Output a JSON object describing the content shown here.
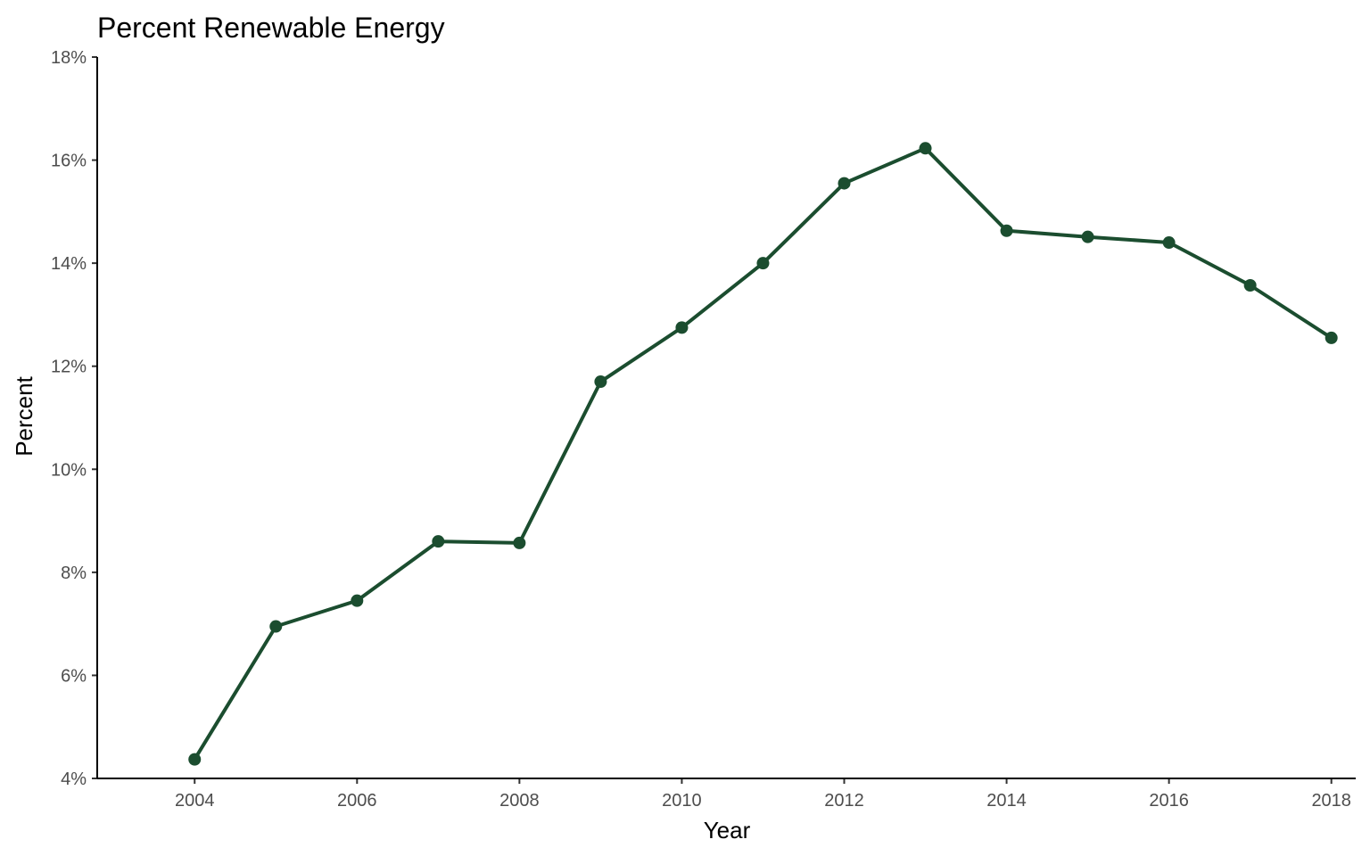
{
  "chart_data": {
    "type": "line",
    "title": "Percent Renewable Energy",
    "xlabel": "Year",
    "ylabel": "Percent",
    "x": [
      2004,
      2005,
      2006,
      2007,
      2008,
      2009,
      2010,
      2011,
      2012,
      2013,
      2014,
      2015,
      2016,
      2017,
      2018
    ],
    "series": [
      {
        "values": [
          4.37,
          6.95,
          7.45,
          8.6,
          8.57,
          11.7,
          12.75,
          14.0,
          15.55,
          16.23,
          14.63,
          14.51,
          14.4,
          13.57,
          12.55
        ]
      }
    ],
    "xlim": [
      2002.8,
      2018.3
    ],
    "ylim": [
      4,
      18
    ],
    "x_ticks": [
      2004,
      2006,
      2008,
      2010,
      2012,
      2014,
      2016,
      2018
    ],
    "x_tick_labels": [
      "2004",
      "2006",
      "2008",
      "2010",
      "2012",
      "2014",
      "2016",
      "2018"
    ],
    "y_ticks": [
      4,
      6,
      8,
      10,
      12,
      14,
      16,
      18
    ],
    "y_tick_labels": [
      "4%",
      "6%",
      "8%",
      "10%",
      "12%",
      "14%",
      "16%",
      "18%"
    ],
    "grid": false,
    "line_color": "#1b4d2f",
    "marker": "circle"
  }
}
